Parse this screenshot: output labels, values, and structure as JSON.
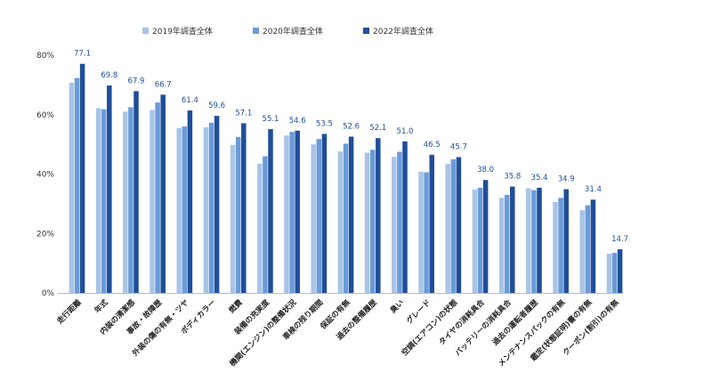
{
  "chart_data": {
    "type": "bar",
    "title": "",
    "xlabel": "",
    "ylabel": "",
    "ylim": [
      0,
      80
    ],
    "yticks": [
      0,
      20,
      40,
      60,
      80
    ],
    "ytick_labels": [
      "0%",
      "20%",
      "40%",
      "60%",
      "80%"
    ],
    "grid": false,
    "legend_position": "top",
    "categories": [
      "走行距離",
      "年式",
      "内装の清潔感",
      "事故・故障歴",
      "外装の傷の有無・ツヤ",
      "ボディカラー",
      "燃費",
      "装備の充実度",
      "機関(エンジン)の整備状況",
      "車検の残り期間",
      "保証の有無",
      "過去の整備履歴",
      "臭い",
      "グレード",
      "空調(エアコン)の状態",
      "タイヤの消耗具合",
      "バッテリーの消耗具合",
      "過去の運転者履歴",
      "メンテナンスパックの有無",
      "鑑定(状態証明)書の有無",
      "クーポン(割引)の有無"
    ],
    "series": [
      {
        "name": "2019年調査全体",
        "color": "#a8c4e6",
        "values": [
          70.8,
          62.2,
          61.0,
          61.6,
          55.5,
          55.8,
          49.8,
          43.5,
          53.0,
          50.0,
          47.6,
          47.2,
          45.8,
          40.8,
          43.4,
          34.8,
          32.0,
          35.2,
          30.6,
          27.8,
          13.2
        ]
      },
      {
        "name": "2020年調査全体",
        "color": "#6a9bd8",
        "values": [
          72.3,
          61.8,
          62.5,
          64.1,
          56.0,
          57.3,
          52.5,
          46.0,
          54.2,
          51.8,
          50.2,
          48.2,
          47.5,
          40.6,
          45.0,
          35.4,
          33.0,
          34.6,
          32.0,
          29.5,
          13.5
        ]
      },
      {
        "name": "2022年調査全体",
        "color": "#1f4e9a",
        "values": [
          77.1,
          69.8,
          67.9,
          66.7,
          61.4,
          59.6,
          57.1,
          55.1,
          54.6,
          53.5,
          52.6,
          52.1,
          51.0,
          46.5,
          45.7,
          38.0,
          35.8,
          35.4,
          34.9,
          31.4,
          14.7
        ]
      }
    ],
    "data_labels": [
      "77.1",
      "69.8",
      "67.9",
      "66.7",
      "61.4",
      "59.6",
      "57.1",
      "55.1",
      "54.6",
      "53.5",
      "52.6",
      "52.1",
      "51.0",
      "46.5",
      "45.7",
      "38.0",
      "35.8",
      "35.4",
      "34.9",
      "31.4",
      "14.7"
    ]
  }
}
